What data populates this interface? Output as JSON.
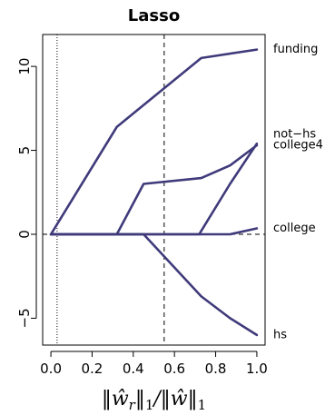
{
  "chart_data": {
    "type": "line",
    "title": "Lasso",
    "xlabel": "‖ŵ_r‖₁/‖ŵ‖₁",
    "ylabel": "",
    "xlim": [
      -0.04,
      1.04
    ],
    "ylim": [
      -6.6,
      11.9
    ],
    "x_ticks": [
      0.0,
      0.2,
      0.4,
      0.6,
      0.8,
      1.0
    ],
    "x_tick_labels": [
      "0.0",
      "0.2",
      "0.4",
      "0.6",
      "0.8",
      "1.0"
    ],
    "y_ticks": [
      -5,
      0,
      5,
      10
    ],
    "y_tick_labels": [
      "−5",
      "0",
      "5",
      "10"
    ],
    "line_color": "#3f3a7a",
    "reference_lines": [
      {
        "axis": "x",
        "value": 0.03,
        "style": "dotted"
      },
      {
        "axis": "x",
        "value": 0.55,
        "style": "dashed"
      },
      {
        "axis": "y",
        "value": 0,
        "style": "dashed"
      }
    ],
    "series": [
      {
        "name": "funding",
        "points": [
          [
            0.0,
            0.0
          ],
          [
            0.32,
            6.4
          ],
          [
            0.73,
            10.5
          ],
          [
            1.0,
            11.0
          ]
        ]
      },
      {
        "name": "not-hs",
        "points": [
          [
            0.0,
            0.0
          ],
          [
            0.72,
            0.0
          ],
          [
            0.87,
            3.0
          ],
          [
            1.0,
            5.4
          ]
        ]
      },
      {
        "name": "college4",
        "points": [
          [
            0.0,
            0.0
          ],
          [
            0.32,
            0.0
          ],
          [
            0.45,
            3.0
          ],
          [
            0.73,
            3.35
          ],
          [
            0.87,
            4.1
          ],
          [
            1.0,
            5.3
          ]
        ]
      },
      {
        "name": "college",
        "points": [
          [
            0.0,
            0.0
          ],
          [
            0.87,
            0.0
          ],
          [
            1.0,
            0.35
          ]
        ]
      },
      {
        "name": "hs",
        "points": [
          [
            0.0,
            0.0
          ],
          [
            0.45,
            0.0
          ],
          [
            0.73,
            -3.7
          ],
          [
            0.87,
            -5.0
          ],
          [
            1.0,
            -6.0
          ]
        ]
      }
    ],
    "series_labels": [
      {
        "text": "funding",
        "y": 11.0
      },
      {
        "text": "not−hs",
        "y": 5.95
      },
      {
        "text": "college4",
        "y": 5.3
      },
      {
        "text": "college",
        "y": 0.35
      },
      {
        "text": "hs",
        "y": -6.0
      }
    ],
    "grid": false
  }
}
